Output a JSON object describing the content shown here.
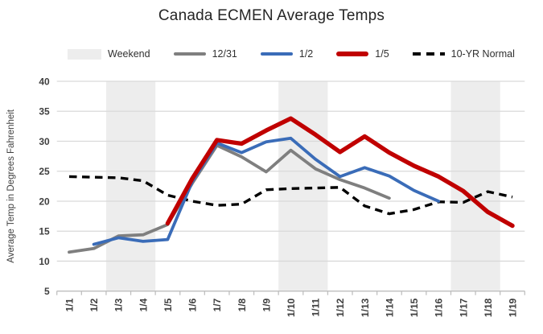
{
  "chart_data": {
    "type": "line",
    "title": "Canada ECMEN Average Temps",
    "ylabel": "Average Temp in Degrees Fahrenheit",
    "xlabel": "",
    "grid": true,
    "legend_position": "top",
    "ylim": [
      5,
      40
    ],
    "yticks": [
      40,
      35,
      30,
      25,
      20,
      15,
      10,
      5
    ],
    "categories": [
      "1/1",
      "1/2",
      "1/3",
      "1/4",
      "1/5",
      "1/6",
      "1/7",
      "1/8",
      "1/9",
      "1/10",
      "1/11",
      "1/12",
      "1/13",
      "1/14",
      "1/15",
      "1/16",
      "1/17",
      "1/18",
      "1/19"
    ],
    "weekend_shading": [
      [
        "1/3",
        "1/4"
      ],
      [
        "1/10",
        "1/11"
      ],
      [
        "1/17",
        "1/18"
      ]
    ],
    "series": [
      {
        "name": "12/31",
        "color": "#7F7F7F",
        "style": "solid",
        "width": 3.8,
        "z": 2,
        "values": [
          11.5,
          12.1,
          14.2,
          14.4,
          16.1,
          23.0,
          29.3,
          27.4,
          24.9,
          28.5,
          25.4,
          23.6,
          22.2,
          20.5,
          null,
          null,
          null,
          null,
          null
        ]
      },
      {
        "name": "1/2",
        "color": "#3A6CB8",
        "style": "solid",
        "width": 3.8,
        "z": 3,
        "values": [
          null,
          12.8,
          13.9,
          13.3,
          13.6,
          23.3,
          29.7,
          28.1,
          29.9,
          30.5,
          27.0,
          24.1,
          25.6,
          24.2,
          21.8,
          20.0,
          null,
          null,
          null
        ]
      },
      {
        "name": "1/5",
        "color": "#C00000",
        "style": "solid",
        "width": 5.4,
        "z": 4,
        "values": [
          null,
          null,
          null,
          null,
          16.3,
          23.8,
          30.2,
          29.6,
          31.8,
          33.8,
          31.1,
          28.2,
          30.8,
          28.1,
          25.9,
          24.1,
          21.7,
          18.2,
          15.9
        ]
      },
      {
        "name": "10-YR Normal",
        "color": "#000000",
        "style": "dashed",
        "width": 3.4,
        "z": 1,
        "values": [
          24.1,
          24.0,
          23.9,
          23.4,
          21.0,
          20.0,
          19.3,
          19.5,
          21.9,
          22.1,
          22.2,
          22.3,
          19.2,
          17.9,
          18.6,
          19.9,
          19.8,
          21.6,
          20.7
        ]
      }
    ],
    "legend": [
      {
        "label": "Weekend",
        "swatch": "band",
        "color": "#EDEDED"
      },
      {
        "label": "12/31",
        "swatch": "line",
        "color": "#7F7F7F"
      },
      {
        "label": "1/2",
        "swatch": "line",
        "color": "#3A6CB8"
      },
      {
        "label": "1/5",
        "swatch": "thick-line",
        "color": "#C00000"
      },
      {
        "label": "10-YR Normal",
        "swatch": "dashed-line",
        "color": "#000000"
      }
    ],
    "colors": {
      "weekend_band": "#EDEDED",
      "grid": "#D9D9D9",
      "axis_line": "#C0C0C0",
      "tick_text": "#3F3F3F",
      "title_text": "#262626"
    }
  }
}
